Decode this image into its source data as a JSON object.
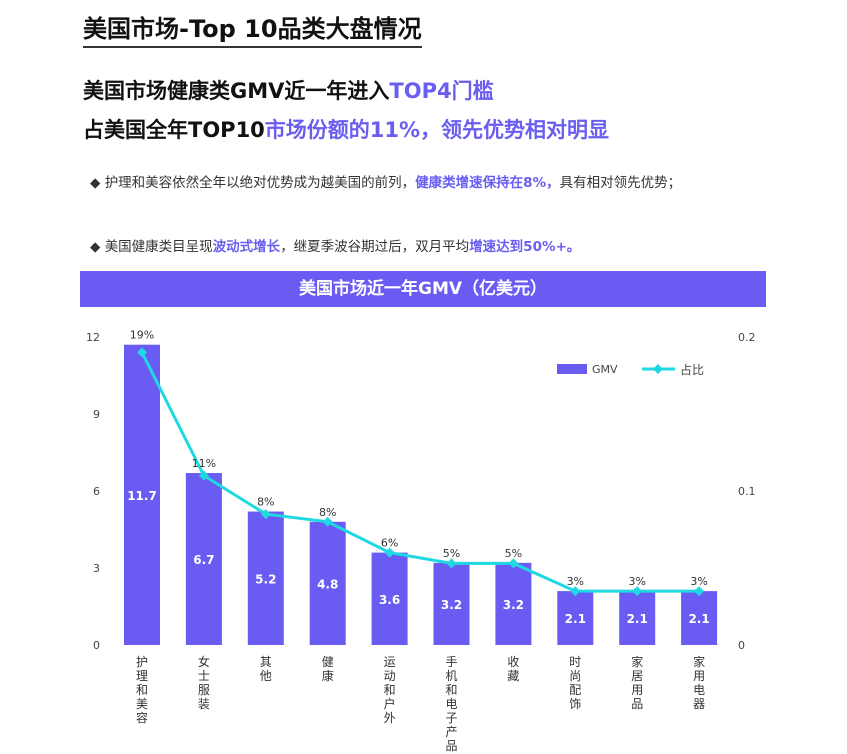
{
  "title": "美国市场-Top 10品类大盘情况",
  "headline": {
    "line1_a": "美国市场健康类GMV近一年进入",
    "line1_b": "TOP4门槛",
    "line2_a": "占美国全年TOP10",
    "line2_b": "市场份额的11%，领先优势相对明显"
  },
  "bullets": [
    {
      "icon": "diamond-bullet-icon",
      "a": "护理和美容依然全年以绝对优势成为越美国的前列，",
      "b": "健康类增速保持在8%，",
      "c": "具有相对领先优势；"
    },
    {
      "icon": "diamond-bullet-icon",
      "a": "美国健康类目呈现",
      "b": "波动式增长",
      "c": "，继夏季波谷期过后，双月平均",
      "d": "增速达到50%+。"
    }
  ],
  "colors": {
    "bar": "#6a5cf2",
    "line": "#1fd8e2",
    "accent": "#6a5ef0"
  },
  "chart_data": {
    "type": "bar+line",
    "title": "美国市场近一年GMV（亿美元）",
    "categories": [
      "护理和美容",
      "女士服装",
      "其他",
      "健康",
      "运动和户外",
      "手机和电子产品",
      "收藏",
      "时尚配饰",
      "家居用品",
      "家用电器"
    ],
    "series": [
      {
        "name": "GMV",
        "type": "bar",
        "axis": "left",
        "values": [
          11.7,
          6.7,
          5.2,
          4.8,
          3.6,
          3.2,
          3.2,
          2.1,
          2.1,
          2.1
        ]
      },
      {
        "name": "占比",
        "type": "line",
        "axis": "right",
        "values": [
          0.19,
          0.11,
          0.085,
          0.08,
          0.06,
          0.053,
          0.053,
          0.035,
          0.035,
          0.035
        ],
        "labels": [
          "19%",
          "11%",
          "8%",
          "8%",
          "6%",
          "5%",
          "5%",
          "3%",
          "3%",
          "3%"
        ]
      }
    ],
    "left_axis": {
      "ylim": [
        0,
        12
      ],
      "ticks": [
        "0",
        "3",
        "6",
        "9",
        "12"
      ]
    },
    "right_axis": {
      "ylim": [
        0,
        0.2
      ],
      "ticks": [
        "0",
        "0.1",
        "0.2"
      ]
    },
    "grid": false,
    "legend": "top-right"
  }
}
